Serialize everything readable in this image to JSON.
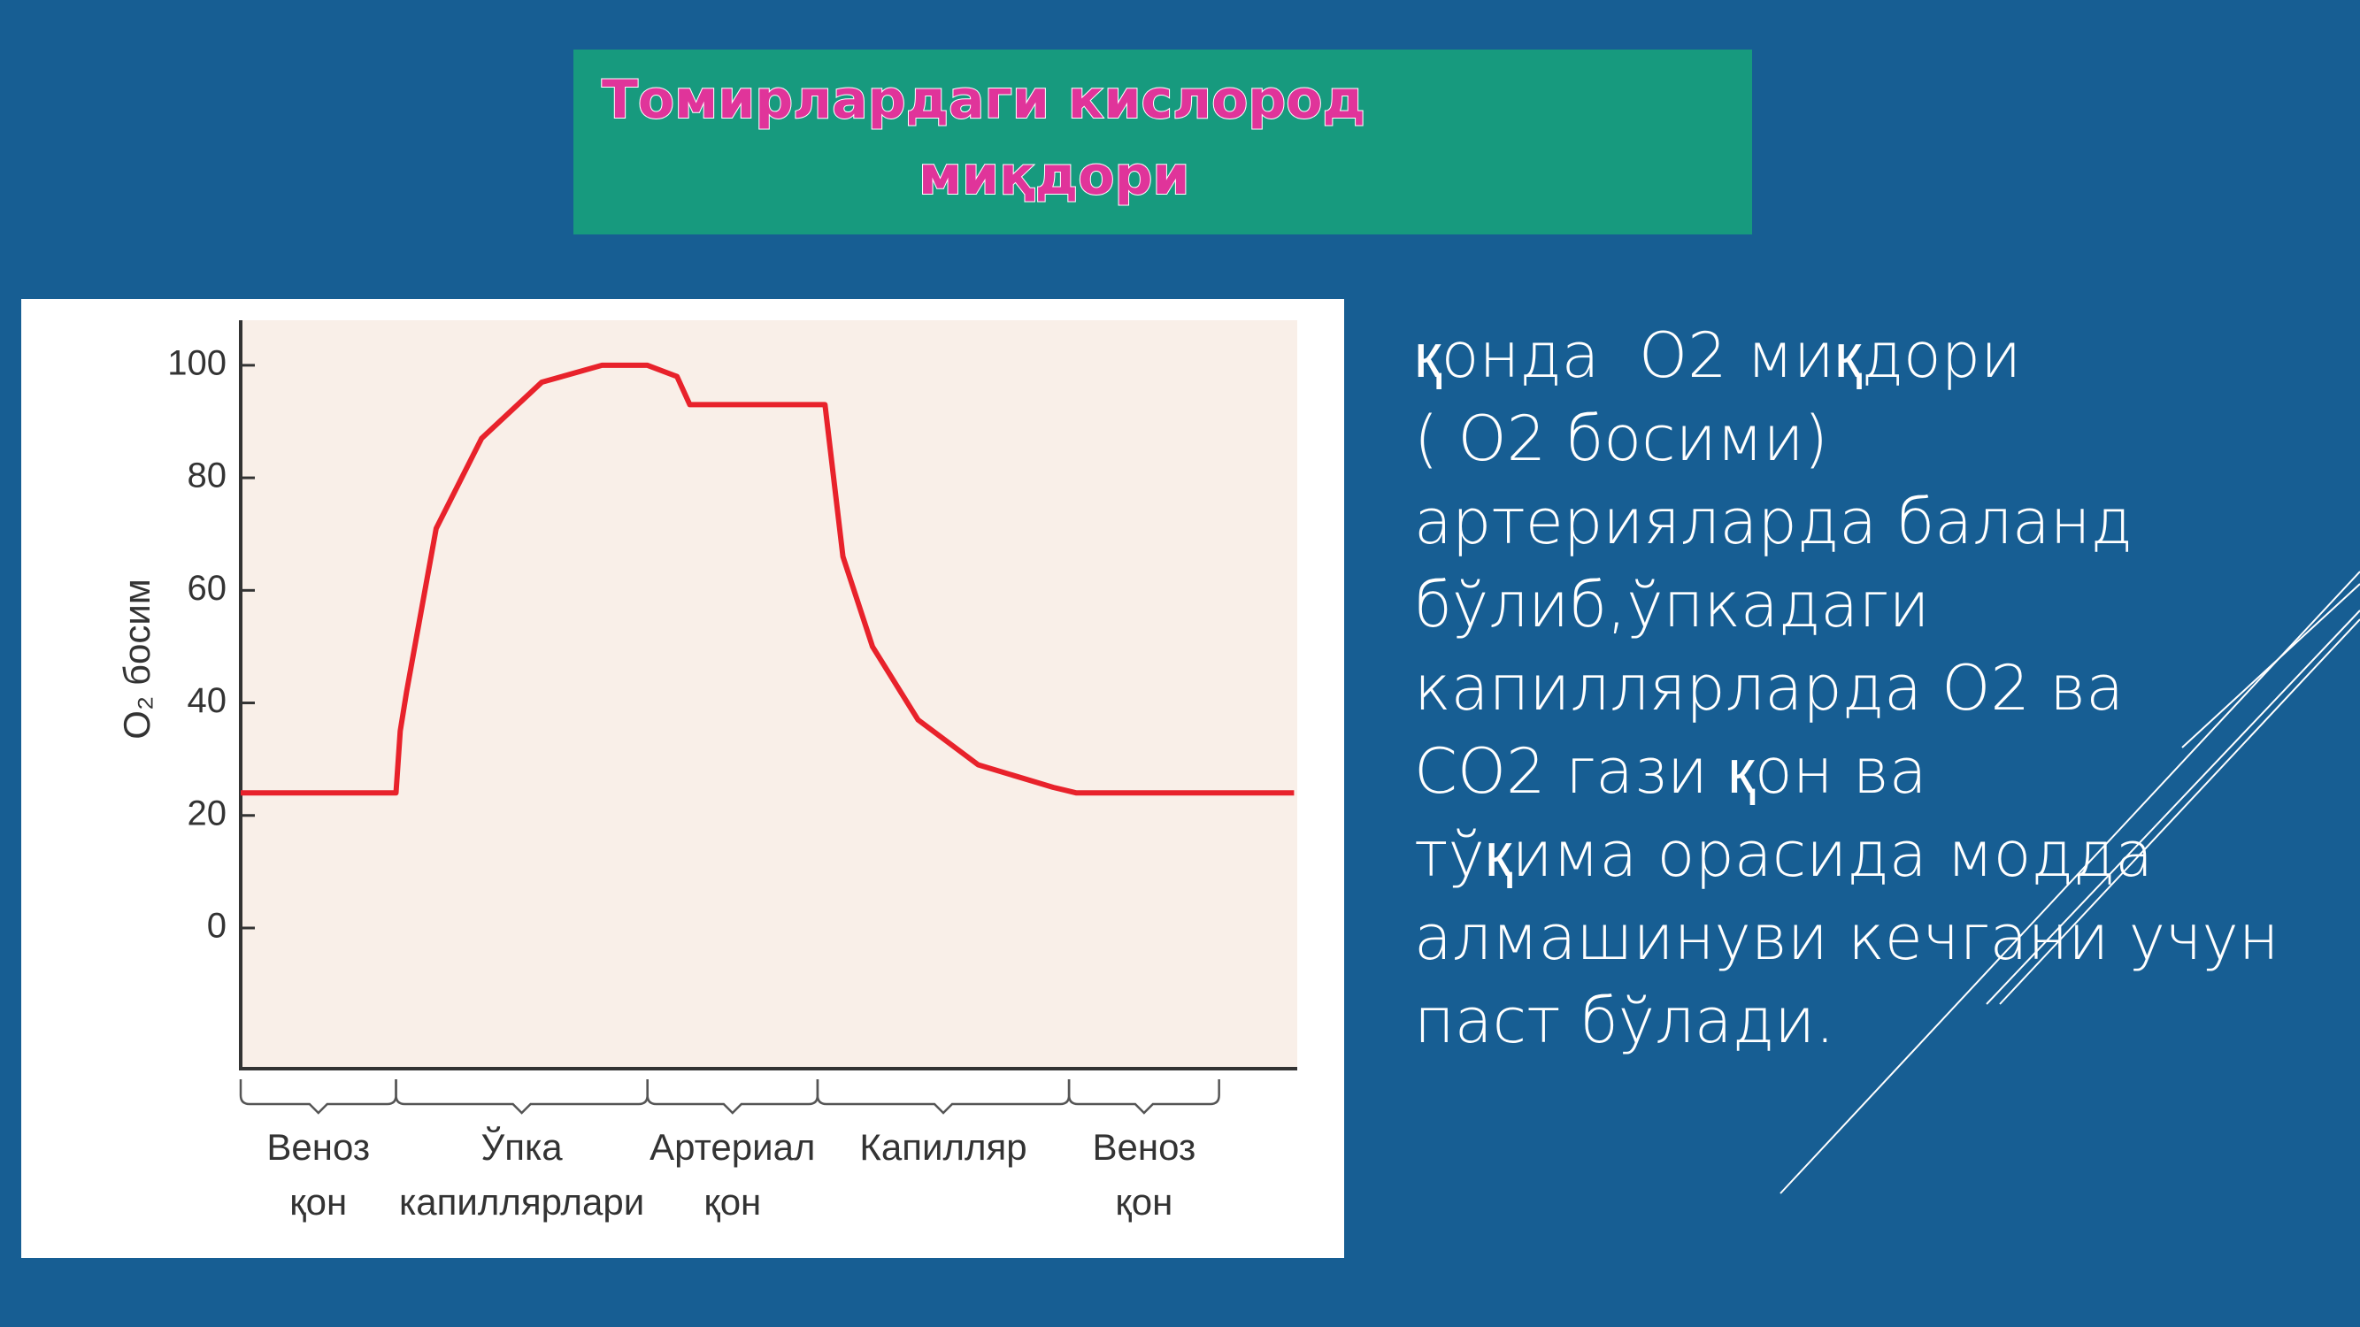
{
  "title": {
    "lines": [
      "Томирлардаги кислород",
      "миқдори"
    ]
  },
  "body": {
    "lines": [
      "қонда  O2 миқдори",
      "( O2 босими)",
      "артерияларда баланд",
      "бўлиб,ўпкадаги",
      "капиллярларда O2 ва",
      "CO2 гази қон ва",
      "тўқима орасида модда",
      "алмашинуви кечгани учун",
      "паст бўлади."
    ]
  },
  "chart_data": {
    "type": "line",
    "ylabel": "O₂ босим",
    "color": "#e8222b",
    "x": [
      0,
      14.7,
      15.1,
      15.7,
      18.5,
      22.8,
      28.5,
      34.2,
      38.5,
      41.3,
      42.5,
      54.8,
      55.3,
      57,
      59.8,
      64.1,
      69.8,
      76.9,
      79.1,
      99.7
    ],
    "values": [
      24,
      24,
      35,
      42,
      71,
      87,
      97,
      100,
      100,
      98,
      93,
      93,
      93,
      66,
      50,
      37,
      29,
      25,
      24,
      24
    ],
    "xlim": [
      0,
      100
    ],
    "ylim": [
      -25,
      108
    ],
    "yticks": [
      0,
      20,
      40,
      60,
      80,
      100
    ],
    "regions": [
      {
        "from": 0,
        "to": 14.7,
        "label": [
          "Веноз",
          "қон"
        ]
      },
      {
        "from": 14.7,
        "to": 38.5,
        "label": [
          "Ўпка",
          "капиллярлари"
        ]
      },
      {
        "from": 38.5,
        "to": 54.6,
        "label": [
          "Артериал",
          "қон"
        ]
      },
      {
        "from": 54.6,
        "to": 78.4,
        "label": [
          "Капилляр"
        ]
      },
      {
        "from": 78.4,
        "to": 92.6,
        "label": [
          "Веноз",
          "қон"
        ]
      }
    ]
  }
}
